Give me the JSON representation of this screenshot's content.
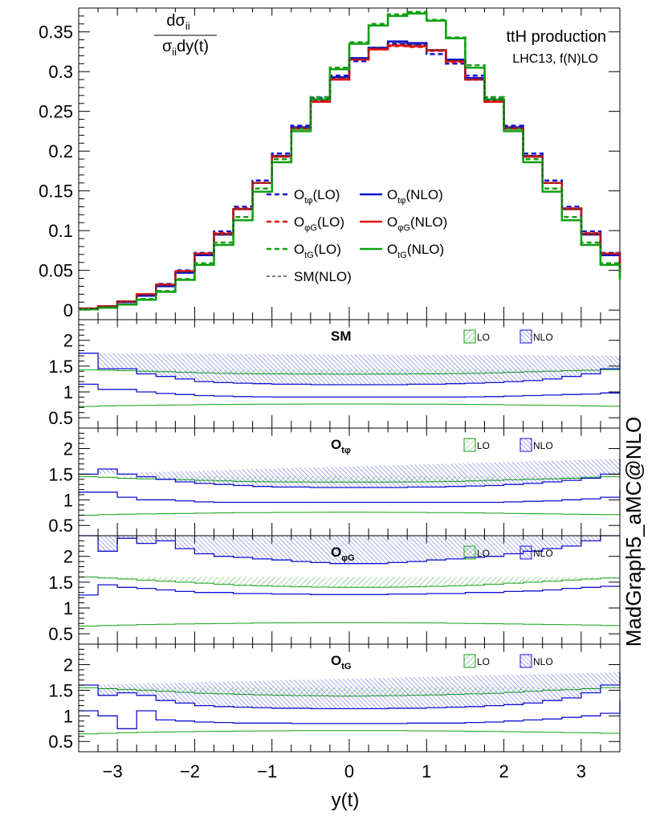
{
  "chart_data": {
    "type": "histogram",
    "xlabel": "y(t)",
    "xlim": [
      -3.5,
      3.5
    ],
    "x_ticks": [
      -3,
      -2,
      -1,
      0,
      1,
      2,
      3
    ],
    "bin_edges": [
      -3.5,
      -3.25,
      -3.0,
      -2.75,
      -2.5,
      -2.25,
      -2.0,
      -1.75,
      -1.5,
      -1.25,
      -1.0,
      -0.75,
      -0.5,
      -0.25,
      0.0,
      0.25,
      0.5,
      0.75,
      1.0,
      1.25,
      1.5,
      1.75,
      2.0,
      2.25,
      2.5,
      2.75,
      3.0,
      3.25,
      3.5
    ],
    "side_label": "MadGraph5_aMC@NLO",
    "main": {
      "ylabel_num": "dσ",
      "ylabel_num_sub": "ii",
      "ylabel_den": "σ",
      "ylabel_den_sub": "ii",
      "ylabel_den_tail": "dy(t)",
      "ylim": [
        -0.012,
        0.38
      ],
      "y_ticks": [
        0,
        0.05,
        0.1,
        0.15,
        0.2,
        0.25,
        0.3,
        0.35
      ],
      "y_tick_labels": [
        "0",
        "0.05",
        "0.1",
        "0.15",
        "0.2",
        "0.25",
        "0.3",
        "0.35"
      ],
      "title": "ttH production",
      "subtitle": "LHC13, f(N)LO",
      "series": [
        {
          "name": "O",
          "sub": "tφ",
          "tail": "(LO)",
          "color": "#1010d0",
          "dash": "6,4",
          "width": 2.5,
          "values": [
            0.002,
            0.005,
            0.011,
            0.02,
            0.033,
            0.05,
            0.072,
            0.099,
            0.13,
            0.163,
            0.197,
            0.232,
            0.267,
            0.295,
            0.313,
            0.33,
            0.335,
            0.334,
            0.322,
            0.31,
            0.295,
            0.267,
            0.232,
            0.197,
            0.163,
            0.13,
            0.099,
            0.072,
            0.05
          ]
        },
        {
          "name": "O",
          "sub": "tφ",
          "tail": "(NLO)",
          "color": "#1010d0",
          "dash": "",
          "width": 2.5,
          "values": [
            0.002,
            0.005,
            0.01,
            0.018,
            0.03,
            0.047,
            0.069,
            0.095,
            0.127,
            0.16,
            0.194,
            0.23,
            0.265,
            0.293,
            0.317,
            0.33,
            0.338,
            0.336,
            0.327,
            0.315,
            0.292,
            0.265,
            0.23,
            0.194,
            0.16,
            0.127,
            0.095,
            0.069,
            0.047
          ]
        },
        {
          "name": "O",
          "sub": "φG",
          "tail": "(LO)",
          "color": "#e01010",
          "dash": "6,4",
          "width": 2.5,
          "values": [
            0.002,
            0.005,
            0.011,
            0.02,
            0.032,
            0.049,
            0.071,
            0.097,
            0.128,
            0.16,
            0.194,
            0.229,
            0.263,
            0.291,
            0.315,
            0.328,
            0.332,
            0.331,
            0.326,
            0.312,
            0.29,
            0.263,
            0.229,
            0.194,
            0.16,
            0.128,
            0.097,
            0.071,
            0.049
          ]
        },
        {
          "name": "O",
          "sub": "φG",
          "tail": "(NLO)",
          "color": "#e01010",
          "dash": "",
          "width": 2.5,
          "values": [
            0.002,
            0.005,
            0.011,
            0.02,
            0.032,
            0.049,
            0.071,
            0.096,
            0.127,
            0.16,
            0.193,
            0.228,
            0.262,
            0.29,
            0.315,
            0.328,
            0.333,
            0.332,
            0.327,
            0.313,
            0.29,
            0.262,
            0.228,
            0.193,
            0.16,
            0.127,
            0.096,
            0.071,
            0.049
          ]
        },
        {
          "name": "O",
          "sub": "tG",
          "tail": "(LO)",
          "color": "#10a010",
          "dash": "6,4",
          "width": 2.5,
          "values": [
            0.001,
            0.003,
            0.007,
            0.014,
            0.024,
            0.039,
            0.059,
            0.085,
            0.117,
            0.153,
            0.19,
            0.228,
            0.268,
            0.305,
            0.337,
            0.36,
            0.372,
            0.375,
            0.365,
            0.343,
            0.308,
            0.268,
            0.228,
            0.19,
            0.153,
            0.117,
            0.085,
            0.059,
            0.039
          ]
        },
        {
          "name": "O",
          "sub": "tG",
          "tail": "(NLO)",
          "color": "#10a010",
          "dash": "",
          "width": 2.5,
          "values": [
            0.001,
            0.003,
            0.007,
            0.013,
            0.023,
            0.038,
            0.057,
            0.082,
            0.113,
            0.149,
            0.186,
            0.225,
            0.265,
            0.303,
            0.335,
            0.358,
            0.37,
            0.373,
            0.364,
            0.342,
            0.305,
            0.265,
            0.225,
            0.186,
            0.149,
            0.113,
            0.082,
            0.057,
            0.038
          ]
        },
        {
          "name": "SM",
          "sub": "",
          "tail": "(NLO)",
          "color": "#333333",
          "dash": "4,3",
          "width": 1.2,
          "values": [
            0.002,
            0.005,
            0.011,
            0.019,
            0.031,
            0.048,
            0.07,
            0.096,
            0.127,
            0.16,
            0.194,
            0.229,
            0.264,
            0.292,
            0.316,
            0.33,
            0.336,
            0.334,
            0.327,
            0.314,
            0.29,
            0.264,
            0.229,
            0.194,
            0.16,
            0.127,
            0.096,
            0.07,
            0.048
          ]
        }
      ]
    },
    "ratio_panels": [
      {
        "label": "SM",
        "sub": "",
        "ylim": [
          0.3,
          2.4
        ],
        "y_ticks": [
          0.5,
          1,
          1.5,
          2
        ],
        "y_tick_labels": [
          "0.5",
          "1",
          "1.5",
          "2"
        ],
        "legend": [
          "LO",
          "NLO"
        ],
        "lo_up": [
          1.43,
          1.42,
          1.41,
          1.4,
          1.39,
          1.38,
          1.37,
          1.36,
          1.355,
          1.35,
          1.348,
          1.346,
          1.345,
          1.344,
          1.344,
          1.345,
          1.346,
          1.348,
          1.35,
          1.355,
          1.36,
          1.37,
          1.38,
          1.39,
          1.4,
          1.41,
          1.42,
          1.43,
          1.44
        ],
        "lo_dn": [
          0.72,
          0.73,
          0.735,
          0.74,
          0.745,
          0.75,
          0.755,
          0.758,
          0.76,
          0.762,
          0.764,
          0.765,
          0.766,
          0.767,
          0.767,
          0.766,
          0.765,
          0.764,
          0.762,
          0.76,
          0.758,
          0.755,
          0.75,
          0.745,
          0.74,
          0.735,
          0.73,
          0.725,
          0.72
        ],
        "nlo_up": [
          1.75,
          1.45,
          1.45,
          1.35,
          1.3,
          1.25,
          1.2,
          1.18,
          1.17,
          1.16,
          1.15,
          1.15,
          1.14,
          1.14,
          1.14,
          1.14,
          1.14,
          1.15,
          1.15,
          1.16,
          1.17,
          1.18,
          1.2,
          1.22,
          1.25,
          1.3,
          1.35,
          1.45,
          1.7
        ],
        "nlo_dn": [
          1.15,
          1.05,
          1.05,
          1.0,
          0.97,
          0.95,
          0.93,
          0.92,
          0.91,
          0.905,
          0.9,
          0.9,
          0.9,
          0.9,
          0.9,
          0.9,
          0.9,
          0.9,
          0.9,
          0.9,
          0.905,
          0.91,
          0.92,
          0.93,
          0.94,
          0.95,
          0.96,
          0.98,
          1.0
        ]
      },
      {
        "label": "O",
        "sub": "tφ",
        "ylim": [
          0.3,
          2.4
        ],
        "y_ticks": [
          0.5,
          1,
          1.5,
          2
        ],
        "y_tick_labels": [
          "0.5",
          "1",
          "1.5",
          "2"
        ],
        "legend": [
          "LO",
          "NLO"
        ],
        "lo_up": [
          1.45,
          1.44,
          1.42,
          1.41,
          1.4,
          1.39,
          1.38,
          1.37,
          1.36,
          1.355,
          1.35,
          1.348,
          1.346,
          1.345,
          1.345,
          1.346,
          1.348,
          1.35,
          1.355,
          1.36,
          1.37,
          1.38,
          1.39,
          1.4,
          1.41,
          1.42,
          1.44,
          1.45,
          1.47
        ],
        "lo_dn": [
          0.7,
          0.71,
          0.72,
          0.725,
          0.73,
          0.735,
          0.74,
          0.745,
          0.75,
          0.752,
          0.754,
          0.755,
          0.756,
          0.757,
          0.757,
          0.756,
          0.755,
          0.754,
          0.752,
          0.75,
          0.745,
          0.74,
          0.735,
          0.73,
          0.725,
          0.72,
          0.715,
          0.71,
          0.7
        ],
        "nlo_up": [
          1.5,
          1.6,
          1.5,
          1.45,
          1.4,
          1.35,
          1.32,
          1.3,
          1.28,
          1.26,
          1.25,
          1.25,
          1.24,
          1.24,
          1.24,
          1.24,
          1.24,
          1.25,
          1.25,
          1.26,
          1.27,
          1.28,
          1.3,
          1.32,
          1.35,
          1.38,
          1.42,
          1.5,
          1.8
        ],
        "nlo_dn": [
          1.15,
          1.15,
          1.05,
          1.0,
          1.0,
          0.98,
          0.96,
          0.95,
          0.95,
          0.95,
          0.95,
          0.95,
          0.95,
          0.95,
          0.95,
          0.95,
          0.95,
          0.95,
          0.95,
          0.95,
          0.95,
          0.95,
          0.96,
          0.97,
          0.98,
          1.0,
          1.02,
          1.05,
          1.2
        ]
      },
      {
        "label": "O",
        "sub": "φG",
        "ylim": [
          0.3,
          2.4
        ],
        "y_ticks": [
          0.5,
          1,
          1.5,
          2
        ],
        "y_tick_labels": [
          "0.5",
          "1",
          "1.5",
          "2"
        ],
        "legend": [
          "LO",
          "NLO"
        ],
        "lo_up": [
          1.6,
          1.58,
          1.56,
          1.54,
          1.52,
          1.5,
          1.48,
          1.46,
          1.44,
          1.43,
          1.42,
          1.41,
          1.405,
          1.4,
          1.4,
          1.4,
          1.405,
          1.41,
          1.42,
          1.43,
          1.44,
          1.46,
          1.48,
          1.5,
          1.52,
          1.54,
          1.56,
          1.58,
          1.6
        ],
        "lo_dn": [
          0.65,
          0.66,
          0.67,
          0.68,
          0.685,
          0.69,
          0.695,
          0.7,
          0.705,
          0.71,
          0.712,
          0.714,
          0.715,
          0.716,
          0.716,
          0.715,
          0.714,
          0.712,
          0.71,
          0.705,
          0.7,
          0.695,
          0.69,
          0.685,
          0.68,
          0.675,
          0.67,
          0.66,
          0.65
        ],
        "nlo_up": [
          2.4,
          2.1,
          2.35,
          2.25,
          2.3,
          2.15,
          2.05,
          2.0,
          1.98,
          1.95,
          1.93,
          1.9,
          1.88,
          1.86,
          1.86,
          1.86,
          1.88,
          1.9,
          1.93,
          1.95,
          1.98,
          2.0,
          2.05,
          2.1,
          2.15,
          2.2,
          2.3,
          2.4,
          2.4
        ],
        "nlo_dn": [
          1.25,
          1.45,
          1.4,
          1.38,
          1.35,
          1.32,
          1.3,
          1.3,
          1.28,
          1.28,
          1.27,
          1.27,
          1.26,
          1.26,
          1.26,
          1.26,
          1.27,
          1.27,
          1.28,
          1.28,
          1.3,
          1.3,
          1.32,
          1.33,
          1.35,
          1.38,
          1.4,
          1.42,
          1.45
        ]
      },
      {
        "label": "O",
        "sub": "tG",
        "ylim": [
          0.3,
          2.4
        ],
        "y_ticks": [
          0.5,
          1,
          1.5,
          2
        ],
        "y_tick_labels": [
          "0.5",
          "1",
          "1.5",
          "2"
        ],
        "legend": [
          "LO",
          "NLO"
        ],
        "lo_up": [
          1.55,
          1.53,
          1.51,
          1.5,
          1.48,
          1.46,
          1.44,
          1.43,
          1.42,
          1.41,
          1.4,
          1.395,
          1.39,
          1.385,
          1.385,
          1.39,
          1.395,
          1.4,
          1.41,
          1.42,
          1.43,
          1.44,
          1.46,
          1.48,
          1.5,
          1.51,
          1.53,
          1.55,
          1.57
        ],
        "lo_dn": [
          0.65,
          0.66,
          0.67,
          0.68,
          0.685,
          0.69,
          0.695,
          0.7,
          0.703,
          0.706,
          0.708,
          0.71,
          0.711,
          0.712,
          0.712,
          0.711,
          0.71,
          0.708,
          0.706,
          0.703,
          0.7,
          0.695,
          0.69,
          0.685,
          0.68,
          0.675,
          0.67,
          0.66,
          0.65
        ],
        "nlo_up": [
          1.6,
          1.4,
          1.45,
          1.4,
          1.3,
          1.25,
          1.2,
          1.18,
          1.17,
          1.16,
          1.15,
          1.15,
          1.14,
          1.14,
          1.14,
          1.14,
          1.15,
          1.15,
          1.16,
          1.17,
          1.18,
          1.2,
          1.22,
          1.25,
          1.3,
          1.35,
          1.45,
          1.6,
          1.85
        ],
        "nlo_dn": [
          1.1,
          1.0,
          0.75,
          1.1,
          0.92,
          0.9,
          0.88,
          0.87,
          0.86,
          0.86,
          0.86,
          0.85,
          0.85,
          0.85,
          0.85,
          0.85,
          0.85,
          0.86,
          0.86,
          0.86,
          0.87,
          0.88,
          0.9,
          0.92,
          0.94,
          0.97,
          1.0,
          1.05,
          1.3
        ]
      }
    ],
    "colors": {
      "lo": "#10a010",
      "nlo": "#1010d0"
    }
  }
}
